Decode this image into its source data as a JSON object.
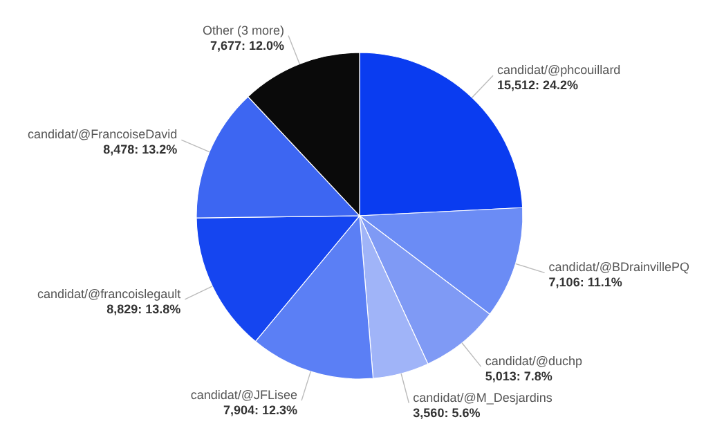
{
  "chart_data": {
    "type": "pie",
    "categories": [
      "candidat/@phcouillard",
      "candidat/@BDrainvillePQ",
      "candidat/@duchp",
      "candidat/@M_Desjardins",
      "candidat/@JFLisee",
      "candidat/@francoislegault",
      "candidat/@FrancoiseDavid",
      "Other (3 more)"
    ],
    "values": [
      15512,
      7106,
      5013,
      3560,
      7904,
      8829,
      8478,
      7677
    ],
    "value_labels": [
      "15,512: 24.2%",
      "7,106: 11.1%",
      "5,013: 7.8%",
      "3,560: 5.6%",
      "7,904: 12.3%",
      "8,829: 13.8%",
      "8,478: 13.2%",
      "7,677: 12.0%"
    ],
    "colors": [
      "#0a3cf0",
      "#6b8cf5",
      "#7f9af5",
      "#a0b4f8",
      "#5b7ff5",
      "#1545f0",
      "#3d66f2",
      "#0a0a0a"
    ]
  }
}
